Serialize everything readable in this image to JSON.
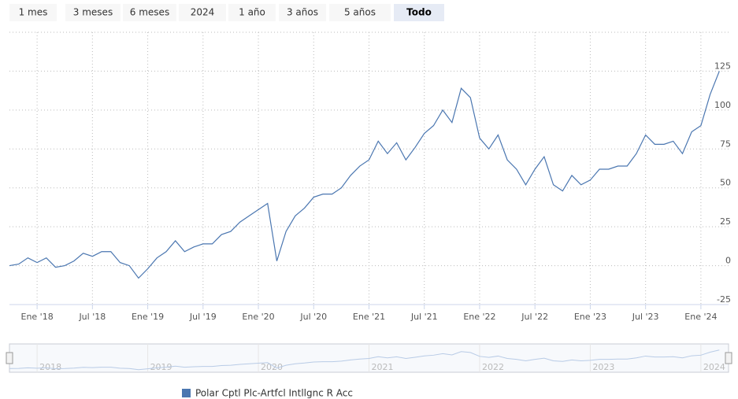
{
  "range_buttons": [
    "1 mes",
    "3 meses",
    "6 meses",
    "2024",
    "1 año",
    "3 años",
    "5 años",
    "Todo"
  ],
  "selected_button": "Todo",
  "chart_data": {
    "type": "line",
    "x": [
      "2017-10",
      "2017-11",
      "2017-12",
      "2018-01",
      "2018-02",
      "2018-03",
      "2018-04",
      "2018-05",
      "2018-06",
      "2018-07",
      "2018-08",
      "2018-09",
      "2018-10",
      "2018-11",
      "2018-12",
      "2019-01",
      "2019-02",
      "2019-03",
      "2019-04",
      "2019-05",
      "2019-06",
      "2019-07",
      "2019-08",
      "2019-09",
      "2019-10",
      "2019-11",
      "2019-12",
      "2020-01",
      "2020-02",
      "2020-03",
      "2020-04",
      "2020-05",
      "2020-06",
      "2020-07",
      "2020-08",
      "2020-09",
      "2020-10",
      "2020-11",
      "2020-12",
      "2021-01",
      "2021-02",
      "2021-03",
      "2021-04",
      "2021-05",
      "2021-06",
      "2021-07",
      "2021-08",
      "2021-09",
      "2021-10",
      "2021-11",
      "2021-12",
      "2022-01",
      "2022-02",
      "2022-03",
      "2022-04",
      "2022-05",
      "2022-06",
      "2022-07",
      "2022-08",
      "2022-09",
      "2022-10",
      "2022-11",
      "2022-12",
      "2023-01",
      "2023-02",
      "2023-03",
      "2023-04",
      "2023-05",
      "2023-06",
      "2023-07",
      "2023-08",
      "2023-09",
      "2023-10",
      "2023-11",
      "2023-12",
      "2024-01",
      "2024-02",
      "2024-03"
    ],
    "series": [
      {
        "name": "Polar Cptl Plc-Artfcl Intllgnc R Acc",
        "color": "#4a76b0",
        "values": [
          0,
          1,
          5,
          2,
          5,
          -1,
          0,
          3,
          8,
          6,
          9,
          9,
          2,
          0,
          -8,
          -2,
          5,
          9,
          16,
          9,
          12,
          14,
          14,
          20,
          22,
          28,
          32,
          36,
          40,
          3,
          22,
          32,
          37,
          44,
          46,
          46,
          50,
          58,
          64,
          68,
          80,
          72,
          79,
          68,
          76,
          85,
          90,
          100,
          92,
          114,
          108,
          82,
          75,
          84,
          68,
          62,
          52,
          62,
          70,
          52,
          48,
          58,
          52,
          55,
          62,
          62,
          64,
          64,
          72,
          84,
          78,
          78,
          80,
          72,
          86,
          90,
          110,
          125
        ]
      }
    ],
    "xlim": [
      "2017-10",
      "2024-04"
    ],
    "xticks": [
      {
        "value": "2018-01",
        "label": "Ene '18"
      },
      {
        "value": "2018-07",
        "label": "Jul '18"
      },
      {
        "value": "2019-01",
        "label": "Ene '19"
      },
      {
        "value": "2019-07",
        "label": "Jul '19"
      },
      {
        "value": "2020-01",
        "label": "Ene '20"
      },
      {
        "value": "2020-07",
        "label": "Jul '20"
      },
      {
        "value": "2021-01",
        "label": "Ene '21"
      },
      {
        "value": "2021-07",
        "label": "Jul '21"
      },
      {
        "value": "2022-01",
        "label": "Ene '22"
      },
      {
        "value": "2022-07",
        "label": "Jul '22"
      },
      {
        "value": "2023-01",
        "label": "Ene '23"
      },
      {
        "value": "2023-07",
        "label": "Jul '23"
      },
      {
        "value": "2024-01",
        "label": "Ene '24"
      }
    ],
    "ylim": [
      -25,
      150
    ],
    "yticks": [
      -25,
      0,
      25,
      50,
      75,
      100,
      125
    ],
    "grid": true,
    "navigator_xticks": [
      {
        "value": "2018-01",
        "label": "2018"
      },
      {
        "value": "2019-01",
        "label": "2019"
      },
      {
        "value": "2020-01",
        "label": "2020"
      },
      {
        "value": "2021-01",
        "label": "2021"
      },
      {
        "value": "2022-01",
        "label": "2022"
      },
      {
        "value": "2023-01",
        "label": "2023"
      },
      {
        "value": "2024-01",
        "label": "2024"
      }
    ]
  }
}
